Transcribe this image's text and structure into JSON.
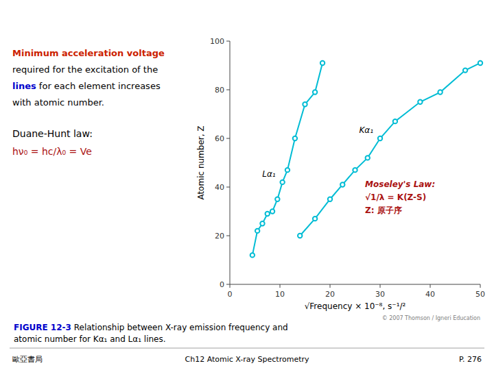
{
  "chart_data": {
    "type": "line",
    "xlabel": "√Frequency × 10⁻⁸, s⁻¹/²",
    "ylabel": "Atomic number, Z",
    "xlim": [
      0,
      50
    ],
    "ylim": [
      0,
      100
    ],
    "xticks": [
      0,
      10,
      20,
      30,
      40,
      50
    ],
    "yticks": [
      0,
      20,
      40,
      60,
      80,
      100
    ],
    "grid": false,
    "series": [
      {
        "name": "Lα₁",
        "color": "#00bcd4",
        "marker": "circle",
        "x": [
          4.5,
          5.5,
          6.5,
          7.5,
          8.5,
          9.5,
          10.5,
          11.5,
          13.0,
          15.0,
          17.0,
          18.5
        ],
        "values": [
          12,
          22,
          25,
          29,
          30,
          35,
          42,
          47,
          60,
          74,
          79,
          91
        ]
      },
      {
        "name": "Kα₁",
        "color": "#00bcd4",
        "marker": "circle",
        "x": [
          14.0,
          17.0,
          20.0,
          22.5,
          25.0,
          27.5,
          30.0,
          33.0,
          38.0,
          42.0,
          47.0,
          50.0
        ],
        "values": [
          20,
          27,
          35,
          41,
          47,
          52,
          60,
          67,
          75,
          79,
          88,
          91
        ]
      }
    ],
    "annotations": [
      {
        "text": "Moseley's Law:",
        "color": "#aa1111"
      },
      {
        "text": "√1/λ = K(Z-S)",
        "color": "#aa1111"
      },
      {
        "text": "Z: 原子序",
        "color": "#aa1111"
      }
    ],
    "copyright": "© 2007 Thomson / Igneri Education",
    "panel": [
      [
        {
          "text": "Minimum acceleration voltage",
          "color": "#cc2200"
        }
      ],
      [
        {
          "text": "required for the excitation of the",
          "color": "#000000"
        }
      ],
      [
        {
          "text": "lines",
          "color": "#0000cc"
        },
        {
          "text": " for each element increases",
          "color": "#000000"
        }
      ],
      [
        {
          "text": "with atomic number.",
          "color": "#000000"
        }
      ],
      [
        {
          "text": "Duane-Hunt law:",
          "color": "#000000"
        }
      ],
      [
        {
          "text": "hν₀ = hc/λ₀ = Ve",
          "color": "#aa1111"
        }
      ]
    ],
    "caption": [
      [
        {
          "text": "FIGURE 12-3",
          "color": "#0000cc"
        },
        {
          "text": "  Relationship between X-ray emission frequency and",
          "color": "#000000"
        }
      ],
      [
        {
          "text": "atomic number for Kα₁ and Lα₁ lines.",
          "color": "#000000"
        }
      ]
    ],
    "footer": [
      "歐亞書局",
      "Ch12 Atomic X-ray Spectrometry",
      "P. 276"
    ]
  }
}
